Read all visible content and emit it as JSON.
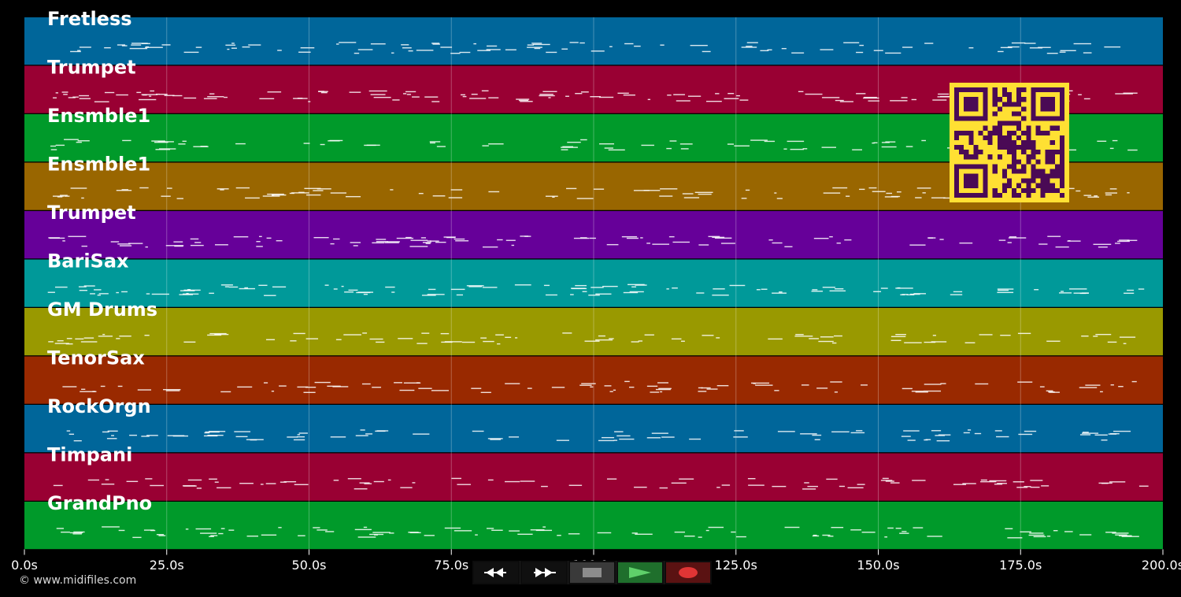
{
  "timeline": {
    "ticks": [
      "0.0s",
      "25.0s",
      "50.0s",
      "75.0s",
      "100.0s",
      "125.0s",
      "150.0s",
      "175.0s",
      "200.0s"
    ],
    "duration_seconds": 200
  },
  "tracks": [
    {
      "name": "Fretless",
      "color": "#00669a"
    },
    {
      "name": "Trumpet",
      "color": "#990033"
    },
    {
      "name": "Ensmble1",
      "color": "#009a2a"
    },
    {
      "name": "Ensmble1",
      "color": "#996600"
    },
    {
      "name": "Trumpet",
      "color": "#660099"
    },
    {
      "name": "BariSax",
      "color": "#009999"
    },
    {
      "name": "GM Drums",
      "color": "#999900"
    },
    {
      "name": "TenorSax",
      "color": "#992900"
    },
    {
      "name": "RockOrgn",
      "color": "#00669a"
    },
    {
      "name": "Timpani",
      "color": "#990033"
    },
    {
      "name": "GrandPno",
      "color": "#009a2a"
    }
  ],
  "copyright": "© www.midifiles.com",
  "transport": {
    "rewind_icon": "rewind-icon",
    "forward_icon": "fast-forward-icon",
    "stop_icon": "stop-icon",
    "play_icon": "play-icon",
    "record_icon": "record-icon"
  },
  "qr_code": {
    "fg": "#4a0a55",
    "bg": "#ffe033"
  }
}
